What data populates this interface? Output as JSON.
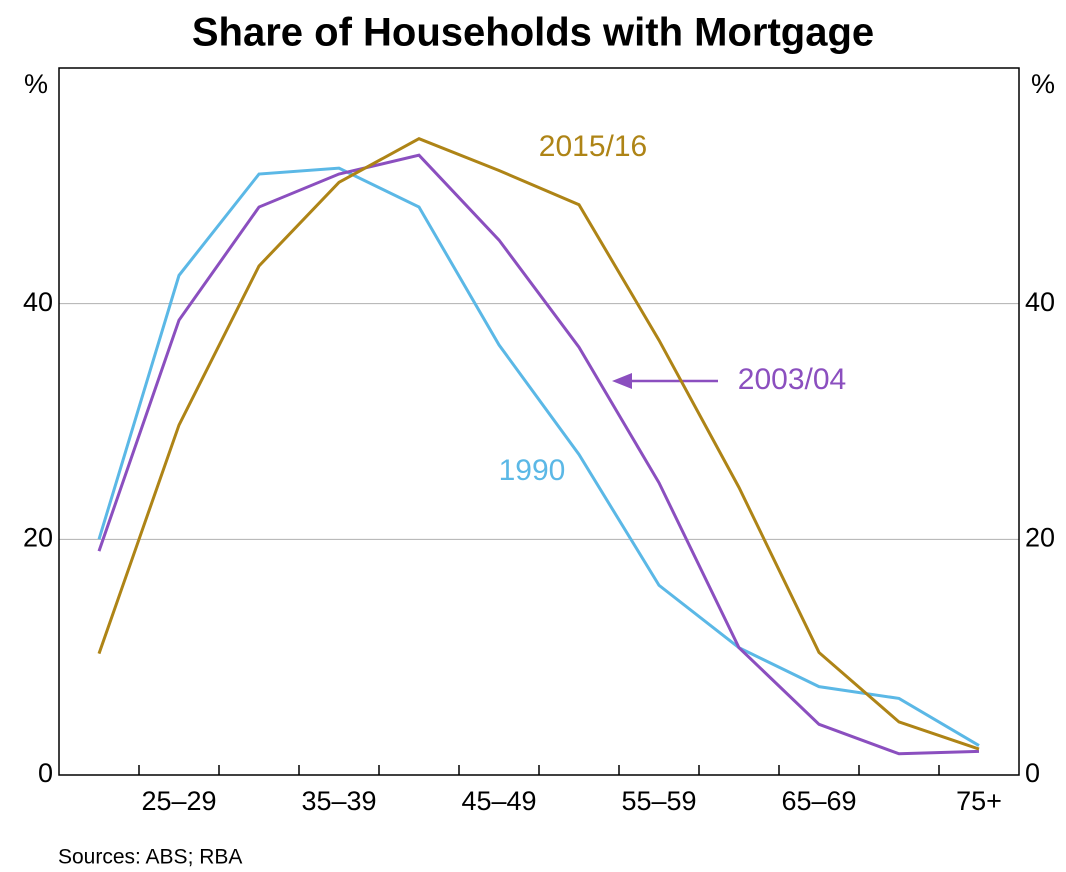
{
  "chart_data": {
    "type": "line",
    "title": "Share of Households with Mortgage",
    "y_label": "%",
    "categories": [
      null,
      "25–29",
      null,
      "35–39",
      null,
      "45–49",
      null,
      "55–59",
      null,
      "65–69",
      null,
      "75+"
    ],
    "series": [
      {
        "name": "1990",
        "color": "#5bb8e6",
        "values": [
          20,
          42.4,
          51,
          51.5,
          48.2,
          36.5,
          27.2,
          16.1,
          10.8,
          7.5,
          6.5,
          2.5
        ]
      },
      {
        "name": "2003/04",
        "color": "#8b4fbf",
        "values": [
          19,
          38.6,
          48.2,
          51,
          52.6,
          45.4,
          36.3,
          24.8,
          10.8,
          4.3,
          1.8,
          2
        ]
      },
      {
        "name": "2015/16",
        "color": "#ae8416",
        "values": [
          10.3,
          29.7,
          43.2,
          50.3,
          54,
          51.3,
          48.4,
          36.9,
          24.4,
          10.4,
          4.5,
          2.2
        ]
      }
    ],
    "ylim": [
      0,
      60
    ],
    "yticks": [
      0,
      20,
      40
    ],
    "grid": true,
    "source": "Sources:   ABS; RBA"
  }
}
